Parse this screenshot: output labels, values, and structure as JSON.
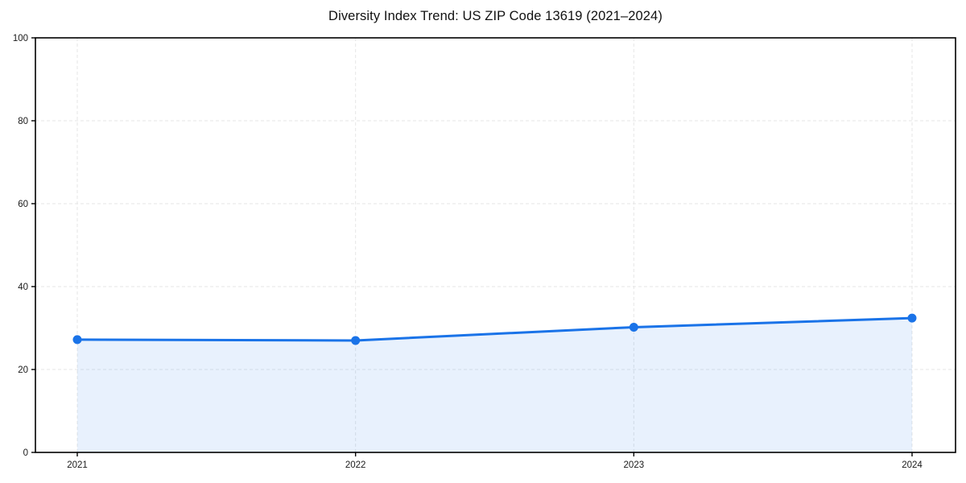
{
  "figure": {
    "background_color": "#ffffff"
  },
  "chart_data": {
    "type": "line",
    "title": "Diversity Index Trend: US ZIP Code 13619 (2021–2024)",
    "categories": [
      "2021",
      "2022",
      "2023",
      "2024"
    ],
    "x": [
      2021,
      2022,
      2023,
      2024
    ],
    "series": [
      {
        "name": "Diversity Index",
        "values": [
          27.2,
          27.0,
          30.2,
          32.4
        ]
      }
    ],
    "xlabel": "",
    "ylabel": "",
    "ylim": [
      0,
      100
    ],
    "yticks": [
      0,
      20,
      40,
      60,
      80,
      100
    ],
    "grid": "on",
    "grid_style": "dashed",
    "legend_position": "none",
    "line_color": "#1a73e8",
    "marker_shape": "circle",
    "area_fill": true,
    "area_fill_color": "rgba(26,115,232,0.10)",
    "grid_color": "#e6e6e6",
    "frame_color": "#000000"
  }
}
